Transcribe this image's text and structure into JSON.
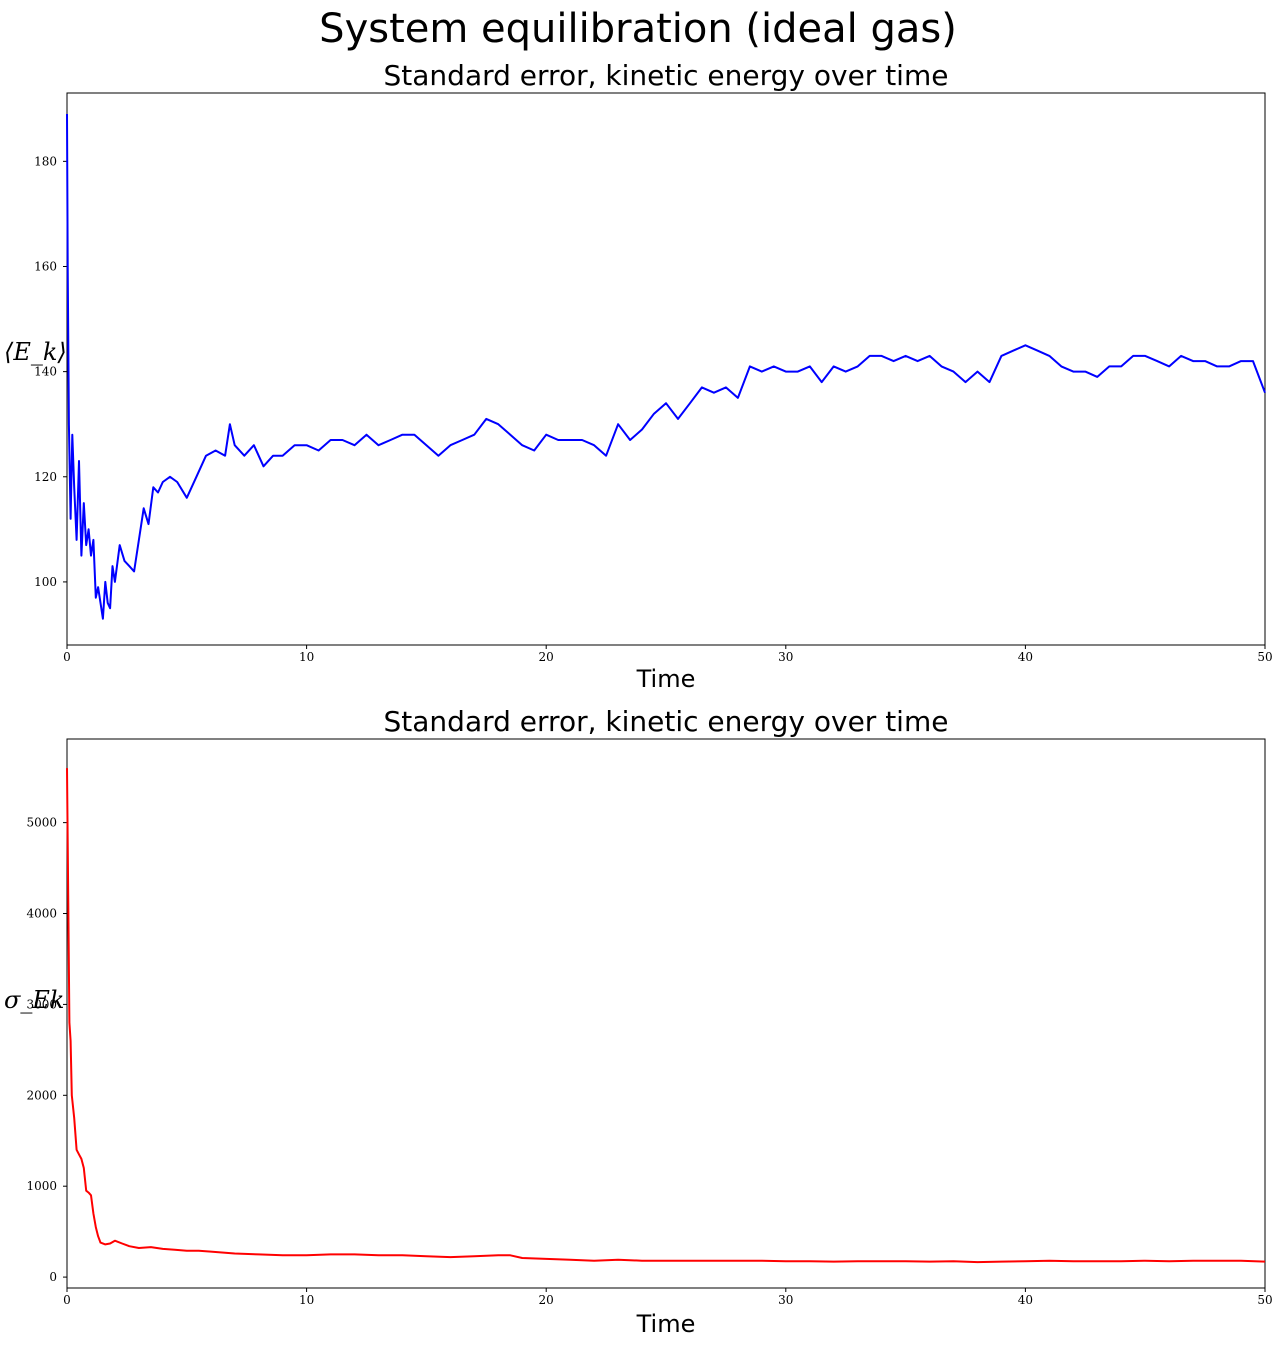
{
  "figure": {
    "suptitle": "System equilibration (ideal gas)"
  },
  "chart_data": [
    {
      "type": "line",
      "title": "Standard error, kinetic energy over time",
      "xlabel": "Time",
      "ylabel": "⟨E_k⟩",
      "xlim": [
        0,
        50
      ],
      "ylim": [
        88,
        193
      ],
      "xticks": [
        0,
        10,
        20,
        30,
        40,
        50
      ],
      "yticks": [
        100,
        120,
        140,
        160,
        180
      ],
      "grid": false,
      "color": "#0000ff",
      "series": [
        {
          "x": [
            0,
            0.03,
            0.08,
            0.15,
            0.22,
            0.3,
            0.4,
            0.5,
            0.6,
            0.7,
            0.8,
            0.9,
            1.0,
            1.1,
            1.2,
            1.3,
            1.4,
            1.5,
            1.6,
            1.7,
            1.8,
            1.9,
            2.0,
            2.2,
            2.4,
            2.6,
            2.8,
            3.0,
            3.2,
            3.4,
            3.6,
            3.8,
            4.0,
            4.3,
            4.6,
            5.0,
            5.4,
            5.8,
            6.2,
            6.6,
            6.8,
            7.0,
            7.4,
            7.8,
            8.2,
            8.6,
            9.0,
            9.5,
            10.0,
            10.5,
            11.0,
            11.5,
            12.0,
            12.5,
            13.0,
            13.5,
            14.0,
            14.5,
            15.0,
            15.5,
            16.0,
            16.5,
            17.0,
            17.5,
            18.0,
            18.5,
            19.0,
            19.5,
            20.0,
            20.5,
            21.0,
            21.5,
            22.0,
            22.5,
            23.0,
            23.5,
            24.0,
            24.5,
            25.0,
            25.5,
            26.0,
            26.5,
            27.0,
            27.5,
            28.0,
            28.5,
            29.0,
            29.5,
            30.0,
            30.5,
            31.0,
            31.5,
            32.0,
            32.5,
            33.0,
            33.5,
            34.0,
            34.5,
            35.0,
            35.5,
            36.0,
            36.5,
            37.0,
            37.5,
            38.0,
            38.5,
            39.0,
            39.5,
            40.0,
            40.5,
            41.0,
            41.5,
            42.0,
            42.5,
            43.0,
            43.5,
            44.0,
            44.5,
            45.0,
            45.5,
            46.0,
            46.5,
            47.0,
            47.5,
            48.0,
            48.5,
            49.0,
            49.5,
            50.0
          ],
          "y": [
            189,
            160,
            130,
            112,
            128,
            118,
            108,
            123,
            105,
            115,
            107,
            110,
            105,
            108,
            97,
            99,
            96,
            93,
            100,
            96,
            95,
            103,
            100,
            107,
            104,
            103,
            102,
            108,
            114,
            111,
            118,
            117,
            119,
            120,
            119,
            116,
            120,
            124,
            125,
            124,
            130,
            126,
            124,
            126,
            122,
            124,
            124,
            126,
            126,
            125,
            127,
            127,
            126,
            128,
            126,
            127,
            128,
            128,
            126,
            124,
            126,
            127,
            128,
            131,
            130,
            128,
            126,
            125,
            128,
            127,
            127,
            127,
            126,
            124,
            130,
            127,
            129,
            132,
            134,
            131,
            134,
            137,
            136,
            137,
            135,
            141,
            140,
            141,
            140,
            140,
            141,
            138,
            141,
            140,
            141,
            143,
            143,
            142,
            143,
            142,
            143,
            141,
            140,
            138,
            140,
            138,
            143,
            144,
            145,
            144,
            143,
            141,
            140,
            140,
            139,
            141,
            141,
            143,
            143,
            142,
            141,
            143,
            142,
            142,
            141,
            141,
            142,
            142,
            136
          ]
        }
      ]
    },
    {
      "type": "line",
      "title": "Standard error, kinetic energy over time",
      "xlabel": "Time",
      "ylabel": "σ_Ek",
      "xlim": [
        0,
        50
      ],
      "ylim": [
        -120,
        5920
      ],
      "xticks": [
        0,
        10,
        20,
        30,
        40,
        50
      ],
      "yticks": [
        0,
        1000,
        2000,
        3000,
        4000,
        5000
      ],
      "grid": false,
      "color": "#ff0000",
      "series": [
        {
          "x": [
            0,
            0.05,
            0.1,
            0.15,
            0.2,
            0.3,
            0.4,
            0.5,
            0.6,
            0.7,
            0.8,
            0.9,
            1.0,
            1.1,
            1.2,
            1.3,
            1.4,
            1.6,
            1.8,
            2.0,
            2.3,
            2.6,
            3.0,
            3.5,
            4.0,
            4.5,
            5.0,
            5.5,
            6.0,
            7.0,
            8.0,
            9.0,
            10.0,
            11.0,
            12.0,
            13.0,
            14.0,
            15.0,
            16.0,
            17.0,
            18.0,
            18.5,
            19.0,
            20.0,
            21.0,
            22.0,
            23.0,
            24.0,
            25.0,
            26.0,
            27.0,
            28.0,
            29.0,
            30.0,
            31.0,
            32.0,
            33.0,
            34.0,
            35.0,
            36.0,
            37.0,
            38.0,
            39.0,
            40.0,
            41.0,
            42.0,
            43.0,
            44.0,
            45.0,
            46.0,
            47.0,
            48.0,
            49.0,
            50.0
          ],
          "y": [
            5600,
            4200,
            2800,
            2600,
            2000,
            1750,
            1400,
            1350,
            1300,
            1200,
            950,
            930,
            900,
            700,
            550,
            450,
            380,
            360,
            370,
            400,
            370,
            340,
            320,
            330,
            310,
            300,
            290,
            290,
            280,
            260,
            250,
            240,
            240,
            250,
            250,
            240,
            240,
            230,
            220,
            230,
            240,
            240,
            210,
            200,
            190,
            180,
            190,
            180,
            180,
            180,
            180,
            180,
            180,
            175,
            175,
            170,
            175,
            175,
            175,
            170,
            175,
            165,
            170,
            175,
            180,
            175,
            175,
            175,
            180,
            175,
            180,
            180,
            180,
            170
          ]
        }
      ]
    }
  ]
}
